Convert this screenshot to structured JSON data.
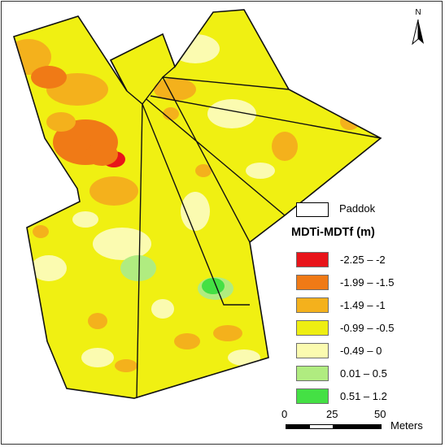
{
  "map": {
    "colors": {
      "base": "#f0f012",
      "outline": "#111111"
    }
  },
  "north_arrow": {
    "letter": "N",
    "icon": "north-arrow-icon"
  },
  "legend": {
    "paddock_label": "Paddok",
    "title": "MDTi-MDTf (m)",
    "classes": [
      {
        "label": "-2.25 – -2",
        "color": "#e8141a"
      },
      {
        "label": "-1.99 – -1.5",
        "color": "#f07a16"
      },
      {
        "label": "-1.49 – -1",
        "color": "#f4b11c"
      },
      {
        "label": "-0.99 – -0.5",
        "color": "#eeee12"
      },
      {
        "label": "-0.49 – 0",
        "color": "#fbfbb0"
      },
      {
        "label": "0.01 – 0.5",
        "color": "#b0ec80"
      },
      {
        "label": "0.51 – 1.2",
        "color": "#44e044"
      }
    ]
  },
  "scale": {
    "ticks": [
      "0",
      "25",
      "50"
    ],
    "units": "Meters"
  }
}
